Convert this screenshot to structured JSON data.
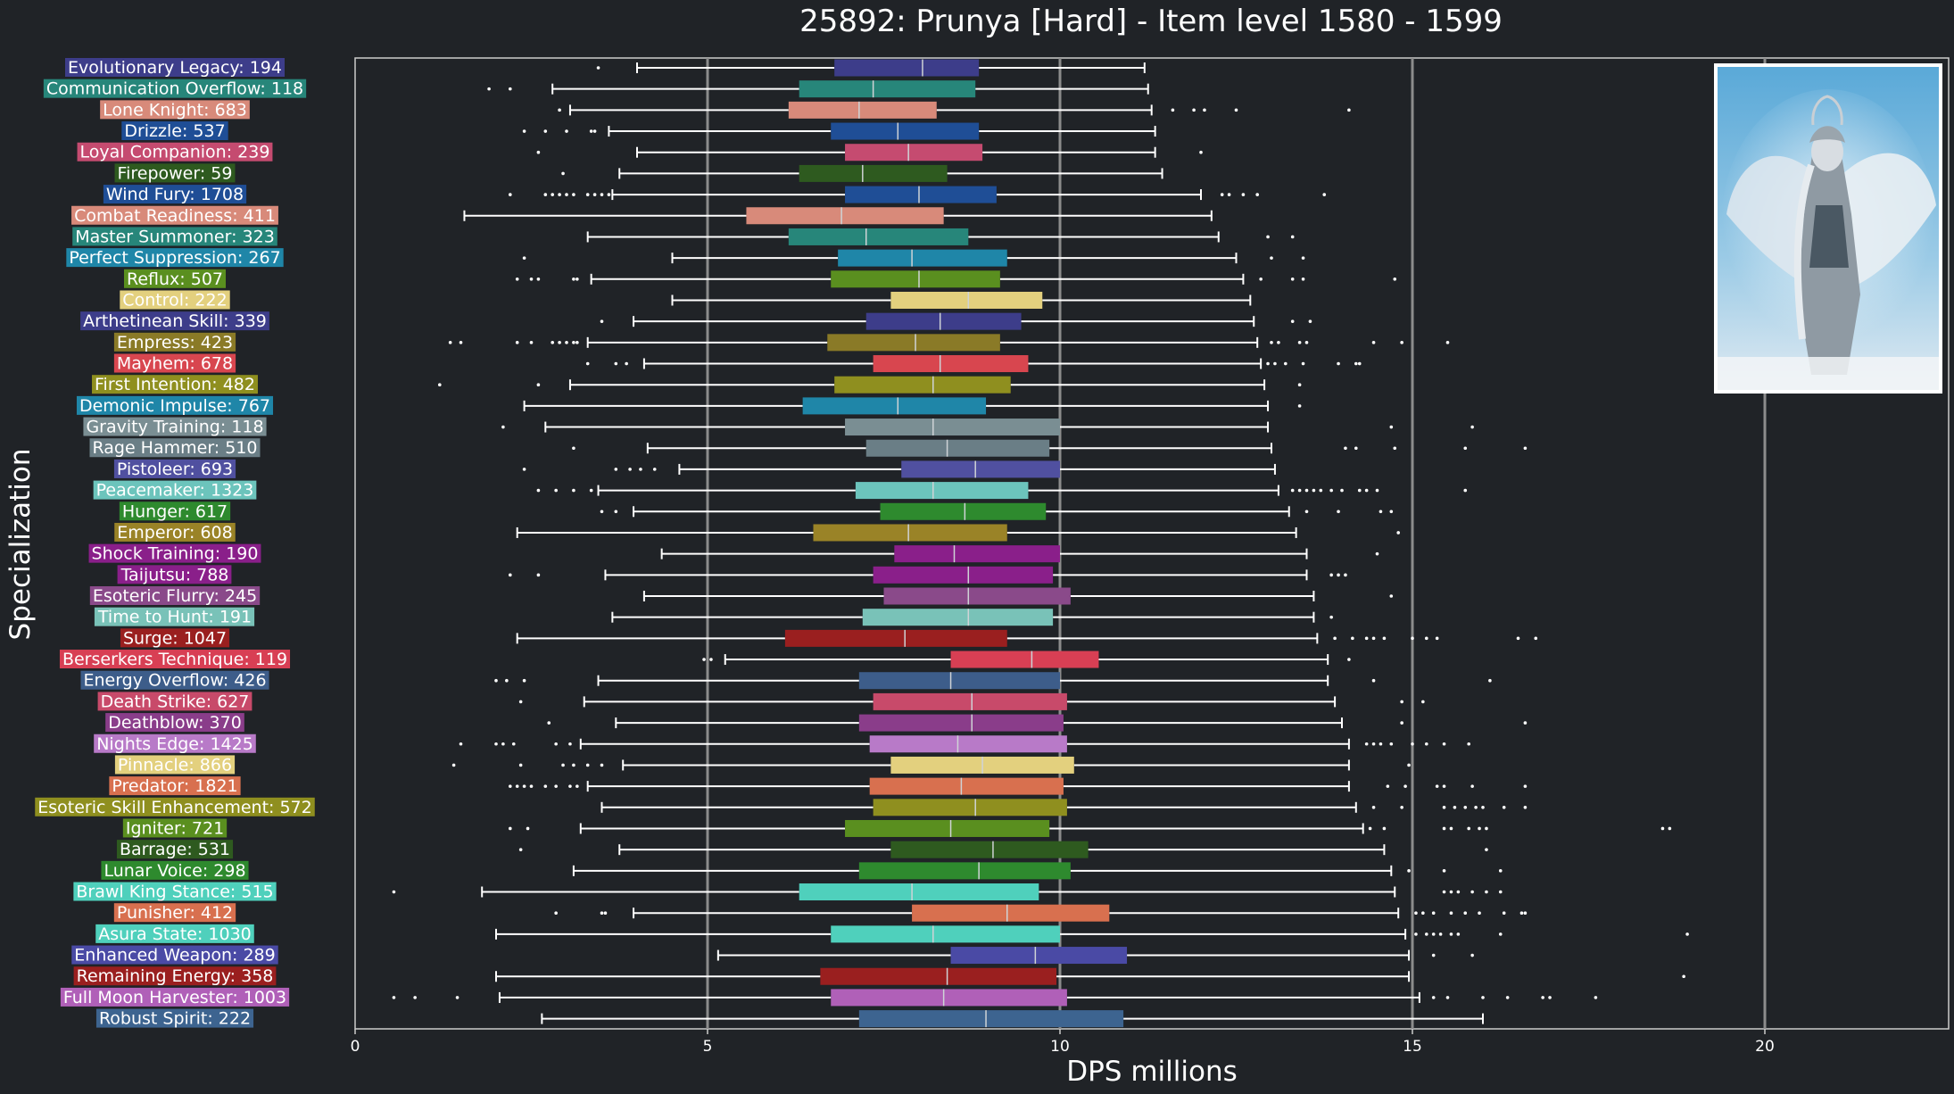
{
  "chart_data": {
    "type": "boxplot",
    "orientation": "horizontal",
    "title": "25892: Prunya [Hard] - Item level 1580 - 1599",
    "xlabel": "DPS millions",
    "ylabel": "Specialization",
    "xlim": [
      0,
      22.6
    ],
    "xticks": [
      0,
      5,
      10,
      15,
      20
    ],
    "vertical_reference_lines": [
      5,
      10,
      15,
      20
    ],
    "grid": false,
    "has_boss_portrait": true,
    "boxes": [
      {
        "label": "Evolutionary Legacy: 194",
        "color": "#3d3d8a",
        "whislo": 4.0,
        "q1": 6.8,
        "median": 8.05,
        "q3": 8.85,
        "whishi": 11.2,
        "fliers": [
          3.45
        ]
      },
      {
        "label": "Communication Overflow: 118",
        "color": "#27867a",
        "whislo": 2.8,
        "q1": 6.3,
        "median": 7.35,
        "q3": 8.8,
        "whishi": 11.25,
        "fliers": [
          1.9,
          2.2
        ]
      },
      {
        "label": "Lone Knight: 683",
        "color": "#d88a7a",
        "whislo": 3.05,
        "q1": 6.15,
        "median": 7.15,
        "q3": 8.25,
        "whishi": 11.3,
        "fliers": [
          2.9,
          11.6,
          11.9,
          12.05,
          12.5,
          14.1
        ]
      },
      {
        "label": "Drizzle: 537",
        "color": "#1f4e96",
        "whislo": 3.6,
        "q1": 6.75,
        "median": 7.7,
        "q3": 8.85,
        "whishi": 11.35,
        "fliers": [
          2.4,
          2.7,
          3.0,
          3.35,
          3.4
        ]
      },
      {
        "label": "Loyal Companion: 239",
        "color": "#c54b70",
        "whislo": 4.0,
        "q1": 6.95,
        "median": 7.85,
        "q3": 8.9,
        "whishi": 11.35,
        "fliers": [
          2.6,
          12.0
        ]
      },
      {
        "label": "Firepower: 59",
        "color": "#2e5a1f",
        "whislo": 3.75,
        "q1": 6.3,
        "median": 7.2,
        "q3": 8.4,
        "whishi": 11.45,
        "fliers": [
          2.95
        ]
      },
      {
        "label": "Wind Fury: 1708",
        "color": "#1f4e96",
        "whislo": 3.65,
        "q1": 6.95,
        "median": 8.0,
        "q3": 9.1,
        "whishi": 12.0,
        "fliers": [
          2.2,
          2.7,
          2.8,
          2.9,
          3.0,
          3.1,
          3.3,
          3.4,
          3.5,
          3.6,
          12.3,
          12.4,
          12.6,
          12.8,
          13.75
        ]
      },
      {
        "label": "Combat Readiness: 411",
        "color": "#d88a7a",
        "whislo": 1.55,
        "q1": 5.55,
        "median": 6.9,
        "q3": 8.35,
        "whishi": 12.15,
        "fliers": []
      },
      {
        "label": "Master Summoner: 323",
        "color": "#27867a",
        "whislo": 3.3,
        "q1": 6.15,
        "median": 7.25,
        "q3": 8.7,
        "whishi": 12.25,
        "fliers": [
          12.95,
          13.3
        ]
      },
      {
        "label": "Perfect Suppression: 267",
        "color": "#1f86a8",
        "whislo": 4.5,
        "q1": 6.85,
        "median": 7.9,
        "q3": 9.25,
        "whishi": 12.5,
        "fliers": [
          2.4,
          13.0,
          13.45
        ]
      },
      {
        "label": "Reflux: 507",
        "color": "#5a8f1f",
        "whislo": 3.35,
        "q1": 6.75,
        "median": 8.0,
        "q3": 9.15,
        "whishi": 12.6,
        "fliers": [
          2.3,
          2.5,
          2.6,
          3.1,
          3.15,
          12.85,
          13.3,
          13.45,
          14.75
        ]
      },
      {
        "label": "Control: 222",
        "color": "#e3d07e",
        "whislo": 4.5,
        "q1": 7.6,
        "median": 8.7,
        "q3": 9.75,
        "whishi": 12.7,
        "fliers": []
      },
      {
        "label": "Arthetinean Skill: 339",
        "color": "#3d3d8a",
        "whislo": 3.95,
        "q1": 7.25,
        "median": 8.3,
        "q3": 9.45,
        "whishi": 12.75,
        "fliers": [
          3.5,
          13.3,
          13.55
        ]
      },
      {
        "label": "Empress: 423",
        "color": "#8a7a27",
        "whislo": 3.3,
        "q1": 6.7,
        "median": 7.95,
        "q3": 9.15,
        "whishi": 12.8,
        "fliers": [
          1.35,
          1.5,
          2.3,
          2.5,
          2.8,
          2.9,
          3.0,
          3.1,
          3.15,
          13.0,
          13.1,
          13.4,
          13.5,
          14.45,
          14.85,
          15.5
        ]
      },
      {
        "label": "Mayhem: 678",
        "color": "#d8464f",
        "whislo": 4.1,
        "q1": 7.35,
        "median": 8.3,
        "q3": 9.55,
        "whishi": 12.85,
        "fliers": [
          3.3,
          3.7,
          3.85,
          12.95,
          13.05,
          13.2,
          13.45,
          13.95,
          14.2,
          14.25
        ]
      },
      {
        "label": "First Intention: 482",
        "color": "#8f8f1f",
        "whislo": 3.05,
        "q1": 6.8,
        "median": 8.2,
        "q3": 9.3,
        "whishi": 12.9,
        "fliers": [
          1.2,
          2.6,
          13.4
        ]
      },
      {
        "label": "Demonic Impulse: 767",
        "color": "#1f86a8",
        "whislo": 2.4,
        "q1": 6.35,
        "median": 7.7,
        "q3": 8.95,
        "whishi": 12.95,
        "fliers": [
          13.4
        ]
      },
      {
        "label": "Gravity Training: 118",
        "color": "#7a8e93",
        "whislo": 2.7,
        "q1": 6.95,
        "median": 8.2,
        "q3": 10.0,
        "whishi": 12.95,
        "fliers": [
          2.1,
          14.7,
          15.85
        ]
      },
      {
        "label": "Rage Hammer: 510",
        "color": "#6a7e86",
        "whislo": 4.15,
        "q1": 7.25,
        "median": 8.4,
        "q3": 9.85,
        "whishi": 13.0,
        "fliers": [
          3.1,
          14.05,
          14.2,
          14.75,
          15.75,
          16.6
        ]
      },
      {
        "label": "Pistoleer: 693",
        "color": "#5050a0",
        "whislo": 4.6,
        "q1": 7.75,
        "median": 8.8,
        "q3": 10.0,
        "whishi": 13.05,
        "fliers": [
          2.4,
          3.7,
          3.9,
          4.05,
          4.25
        ]
      },
      {
        "label": "Peacemaker: 1323",
        "color": "#6cc4bc",
        "whislo": 3.45,
        "q1": 7.1,
        "median": 8.2,
        "q3": 9.55,
        "whishi": 13.1,
        "fliers": [
          2.6,
          2.85,
          3.1,
          3.35,
          13.3,
          13.4,
          13.5,
          13.6,
          13.7,
          13.85,
          14.0,
          14.25,
          14.35,
          14.5,
          15.75
        ]
      },
      {
        "label": "Hunger: 617",
        "color": "#2e8a2e",
        "whislo": 3.95,
        "q1": 7.45,
        "median": 8.65,
        "q3": 9.8,
        "whishi": 13.25,
        "fliers": [
          3.5,
          3.7,
          13.5,
          13.95,
          14.55,
          14.7
        ]
      },
      {
        "label": "Emperor: 608",
        "color": "#9a8327",
        "whislo": 2.3,
        "q1": 6.5,
        "median": 7.85,
        "q3": 9.25,
        "whishi": 13.35,
        "fliers": [
          14.8
        ]
      },
      {
        "label": "Shock Training: 190",
        "color": "#8a1f8a",
        "whislo": 4.35,
        "q1": 7.65,
        "median": 8.5,
        "q3": 10.0,
        "whishi": 13.5,
        "fliers": [
          14.5
        ]
      },
      {
        "label": "Taijutsu: 788",
        "color": "#8a1f8a",
        "whislo": 3.55,
        "q1": 7.35,
        "median": 8.7,
        "q3": 9.9,
        "whishi": 13.5,
        "fliers": [
          2.2,
          2.6,
          13.85,
          13.95,
          14.05
        ]
      },
      {
        "label": "Esoteric Flurry: 245",
        "color": "#8a4a8a",
        "whislo": 4.1,
        "q1": 7.5,
        "median": 8.7,
        "q3": 10.15,
        "whishi": 13.6,
        "fliers": [
          14.7
        ]
      },
      {
        "label": "Time to Hunt: 191",
        "color": "#79c2b8",
        "whislo": 3.65,
        "q1": 7.2,
        "median": 8.7,
        "q3": 9.9,
        "whishi": 13.6,
        "fliers": [
          13.85
        ]
      },
      {
        "label": "Surge: 1047",
        "color": "#9a1f1f",
        "whislo": 2.3,
        "q1": 6.1,
        "median": 7.8,
        "q3": 9.25,
        "whishi": 13.65,
        "fliers": [
          13.9,
          14.15,
          14.35,
          14.45,
          14.6,
          15.0,
          15.2,
          15.35,
          16.5,
          16.75
        ]
      },
      {
        "label": "Berserkers Technique: 119",
        "color": "#d83f54",
        "whislo": 5.25,
        "q1": 8.45,
        "median": 9.6,
        "q3": 10.55,
        "whishi": 13.8,
        "fliers": [
          4.95,
          5.05,
          14.1
        ]
      },
      {
        "label": "Energy Overflow: 426",
        "color": "#3d5d8a",
        "whislo": 3.45,
        "q1": 7.15,
        "median": 8.45,
        "q3": 10.0,
        "whishi": 13.8,
        "fliers": [
          2.0,
          2.15,
          2.4,
          14.45,
          16.1
        ]
      },
      {
        "label": "Death Strike: 627",
        "color": "#c84a6a",
        "whislo": 3.25,
        "q1": 7.35,
        "median": 8.75,
        "q3": 10.1,
        "whishi": 13.9,
        "fliers": [
          2.35,
          14.85,
          15.15
        ]
      },
      {
        "label": "Deathblow: 370",
        "color": "#8a3d8a",
        "whislo": 3.7,
        "q1": 7.15,
        "median": 8.75,
        "q3": 10.05,
        "whishi": 14.0,
        "fliers": [
          2.75,
          14.85,
          16.6
        ]
      },
      {
        "label": "Nights Edge: 1425",
        "color": "#b87ac8",
        "whislo": 3.2,
        "q1": 7.3,
        "median": 8.55,
        "q3": 10.1,
        "whishi": 14.1,
        "fliers": [
          1.5,
          2.0,
          2.1,
          2.25,
          2.85,
          3.05,
          14.35,
          14.45,
          14.55,
          14.7,
          15.0,
          15.2,
          15.45,
          15.8
        ]
      },
      {
        "label": "Pinnacle: 866",
        "color": "#e3d07e",
        "whislo": 3.8,
        "q1": 7.6,
        "median": 8.9,
        "q3": 10.2,
        "whishi": 14.1,
        "fliers": [
          1.4,
          2.35,
          2.95,
          3.1,
          3.3,
          3.5,
          14.95
        ]
      },
      {
        "label": "Predator: 1821",
        "color": "#d8704f",
        "whislo": 3.3,
        "q1": 7.3,
        "median": 8.6,
        "q3": 10.05,
        "whishi": 14.1,
        "fliers": [
          2.2,
          2.3,
          2.4,
          2.5,
          2.7,
          2.85,
          3.05,
          3.15,
          14.65,
          14.9,
          15.35,
          15.45,
          15.85,
          16.6
        ]
      },
      {
        "label": "Esoteric Skill Enhancement: 572",
        "color": "#8f8f1f",
        "whislo": 3.5,
        "q1": 7.35,
        "median": 8.8,
        "q3": 10.1,
        "whishi": 14.2,
        "fliers": [
          14.45,
          14.85,
          15.45,
          15.6,
          15.75,
          15.9,
          16.0,
          16.3,
          16.6
        ]
      },
      {
        "label": "Igniter: 721",
        "color": "#5a8f1f",
        "whislo": 3.2,
        "q1": 6.95,
        "median": 8.45,
        "q3": 9.85,
        "whishi": 14.3,
        "fliers": [
          2.2,
          2.45,
          14.4,
          14.6,
          15.45,
          15.55,
          15.8,
          15.95,
          16.05,
          18.55,
          18.65
        ]
      },
      {
        "label": "Barrage: 531",
        "color": "#2e5a1f",
        "whislo": 3.75,
        "q1": 7.6,
        "median": 9.05,
        "q3": 10.4,
        "whishi": 14.6,
        "fliers": [
          2.35,
          16.05
        ]
      },
      {
        "label": "Lunar Voice: 298",
        "color": "#2e8a2e",
        "whislo": 3.1,
        "q1": 7.15,
        "median": 8.85,
        "q3": 10.15,
        "whishi": 14.7,
        "fliers": [
          14.95,
          15.45,
          16.25
        ]
      },
      {
        "label": "Brawl King Stance: 515",
        "color": "#4fd0bc",
        "whislo": 1.8,
        "q1": 6.3,
        "median": 7.9,
        "q3": 9.7,
        "whishi": 14.75,
        "fliers": [
          0.55,
          15.45,
          15.55,
          15.65,
          15.85,
          16.05,
          16.25
        ]
      },
      {
        "label": "Punisher: 412",
        "color": "#d8704f",
        "whislo": 3.95,
        "q1": 7.9,
        "median": 9.25,
        "q3": 10.7,
        "whishi": 14.8,
        "fliers": [
          2.85,
          3.5,
          3.55,
          15.05,
          15.15,
          15.3,
          15.55,
          15.75,
          15.95,
          16.3,
          16.55,
          16.6
        ]
      },
      {
        "label": "Asura State: 1030",
        "color": "#4fd0bc",
        "whislo": 2.0,
        "q1": 6.75,
        "median": 8.2,
        "q3": 10.0,
        "whishi": 14.9,
        "fliers": [
          15.05,
          15.2,
          15.3,
          15.4,
          15.55,
          15.65,
          16.25,
          18.9
        ]
      },
      {
        "label": "Enhanced Weapon: 289",
        "color": "#4a4aa5",
        "whislo": 5.15,
        "q1": 8.45,
        "median": 9.65,
        "q3": 10.95,
        "whishi": 14.95,
        "fliers": [
          15.3,
          15.85
        ]
      },
      {
        "label": "Remaining Energy: 358",
        "color": "#9a1f1f",
        "whislo": 2.0,
        "q1": 6.6,
        "median": 8.4,
        "q3": 9.95,
        "whishi": 14.95,
        "fliers": [
          18.85
        ]
      },
      {
        "label": "Full Moon Harvester: 1003",
        "color": "#b060b8",
        "whislo": 2.05,
        "q1": 6.75,
        "median": 8.35,
        "q3": 10.1,
        "whishi": 15.1,
        "fliers": [
          0.55,
          0.85,
          1.45,
          15.3,
          15.5,
          16.0,
          16.35,
          16.85,
          16.95,
          17.6
        ]
      },
      {
        "label": "Robust Spirit: 222",
        "color": "#3d6490",
        "whislo": 2.65,
        "q1": 7.15,
        "median": 8.95,
        "q3": 10.9,
        "whishi": 16.0,
        "fliers": []
      }
    ]
  }
}
